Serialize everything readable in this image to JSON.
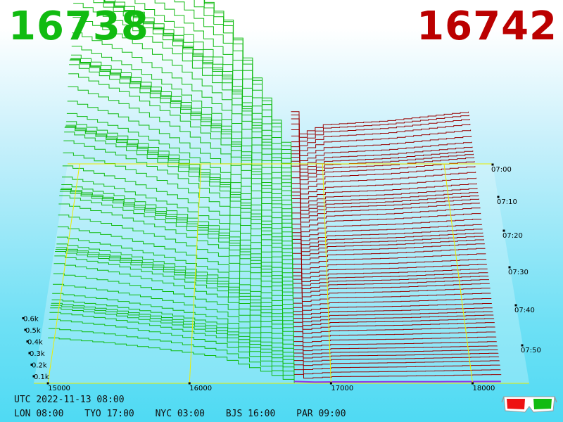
{
  "prices": {
    "bid": "16738",
    "ask": "16742",
    "bid_color": "#11bb11",
    "ask_color": "#bb0000"
  },
  "footer": {
    "utc_label": "UTC",
    "utc_datetime": "2022-11-13 08:00",
    "cities": [
      {
        "code": "LON",
        "time": "08:00"
      },
      {
        "code": "TYO",
        "time": "17:00"
      },
      {
        "code": "NYC",
        "time": "03:00"
      },
      {
        "code": "BJS",
        "time": "16:00"
      },
      {
        "code": "PAR",
        "time": "09:00"
      }
    ]
  },
  "icons": [
    "3d-glasses-icon"
  ],
  "chart_data": {
    "type": "area",
    "title": "",
    "xlabel": "",
    "ylabel": "",
    "x_ticks": [
      15000,
      16000,
      17000,
      18000
    ],
    "x_tick_labels": [
      "15000",
      "16000",
      "17000",
      "18000"
    ],
    "xlim": [
      14900,
      18400
    ],
    "y_ticks": [
      "0.1k",
      "0.2k",
      "0.3k",
      "0.4k",
      "0.5k",
      "0.6k"
    ],
    "ylim": [
      0,
      600
    ],
    "time_ticks": [
      "07:00",
      "07:10",
      "07:20",
      "07:30",
      "07:40",
      "07:50"
    ],
    "mid_price": 16740,
    "snapshots": 60,
    "bid_color": "#11bb11",
    "ask_color": "#990000",
    "bid_profile": [
      {
        "price": 15000,
        "depth": 560
      },
      {
        "price": 15400,
        "depth": 500
      },
      {
        "price": 15800,
        "depth": 420
      },
      {
        "price": 16200,
        "depth": 320
      },
      {
        "price": 16500,
        "depth": 150
      },
      {
        "price": 16738,
        "depth": 0
      }
    ],
    "ask_profile": [
      {
        "price": 16742,
        "depth": 0
      },
      {
        "price": 16780,
        "depth": 55
      },
      {
        "price": 17000,
        "depth": 75
      },
      {
        "price": 17500,
        "depth": 82
      },
      {
        "price": 18000,
        "depth": 95
      },
      {
        "price": 18200,
        "depth": 100
      }
    ],
    "grid": true
  }
}
